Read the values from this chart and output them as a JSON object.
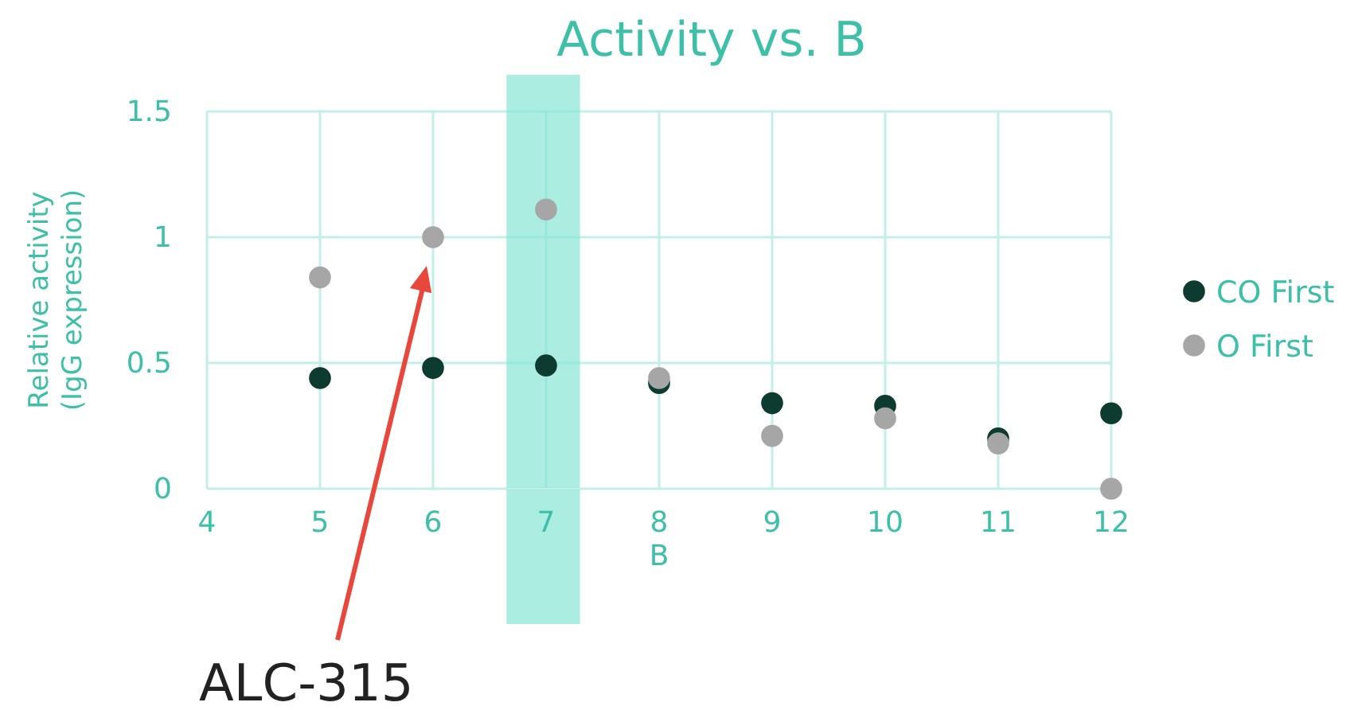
{
  "chart_data": {
    "type": "scatter",
    "title": "Activity vs. B",
    "xlabel": "B",
    "ylabel": "Relative activity\n(IgG expression)",
    "x": [
      5,
      6,
      7,
      8,
      9,
      10,
      11,
      12
    ],
    "series": [
      {
        "name": "CO First",
        "color": "#0d3b30",
        "values": [
          0.44,
          0.48,
          0.49,
          0.42,
          0.34,
          0.33,
          0.2,
          0.3
        ]
      },
      {
        "name": "O First",
        "color": "#a6a6a6",
        "values": [
          0.84,
          1.0,
          1.11,
          0.44,
          0.21,
          0.28,
          0.18,
          0.0
        ]
      }
    ],
    "xlim": [
      4,
      12
    ],
    "xticks": [
      4,
      5,
      6,
      7,
      8,
      9,
      10,
      11,
      12
    ],
    "ylim": [
      0,
      1.5
    ],
    "yticks": [
      0,
      0.5,
      1,
      1.5
    ],
    "bands": [
      {
        "axis": "x",
        "from": 6.65,
        "to": 7.3,
        "color": "#7fe3d3"
      }
    ],
    "annotations": [
      "ALC-315"
    ],
    "grid": true,
    "legend": "right",
    "marker": "circle"
  }
}
